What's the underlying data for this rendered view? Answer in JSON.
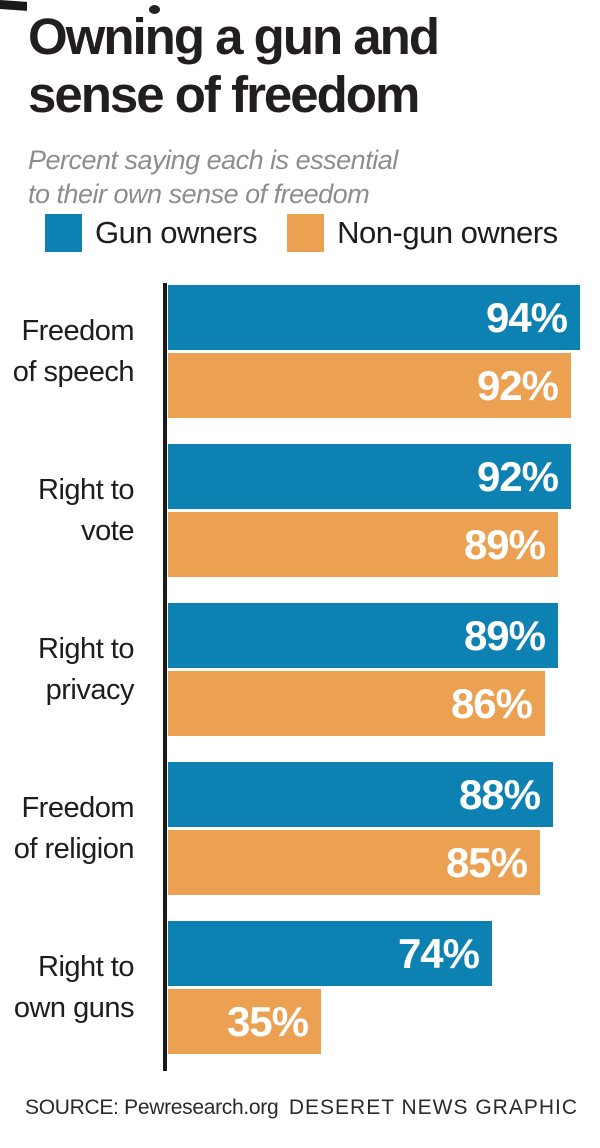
{
  "title": "Owning a gun and\nsense of freedom",
  "subtitle": "Percent saying each is essential\nto their own sense of freedom",
  "legend": [
    {
      "label": "Gun owners",
      "color": "#0d82b2"
    },
    {
      "label": "Non-gun owners",
      "color": "#eba052"
    }
  ],
  "footer": {
    "source": "SOURCE: Pewresearch.org",
    "credit": "DESERET NEWS GRAPHIC"
  },
  "colors": {
    "gun_owners": "#0d82b2",
    "non_gun_owners": "#eba052",
    "axis": "#1a1a1a",
    "title_text": "#221e1f",
    "subtitle_text": "#8d8d8d",
    "value_text": "#ffffff"
  },
  "chart_data": {
    "type": "bar",
    "orientation": "horizontal",
    "title": "Owning a gun and sense of freedom",
    "subtitle": "Percent saying each is essential to their own sense of freedom",
    "categories": [
      "Freedom\nof speech",
      "Right to\nvote",
      "Right to\nprivacy",
      "Freedom\nof religion",
      "Right to\nown guns"
    ],
    "series": [
      {
        "name": "Gun owners",
        "color": "#0d82b2",
        "values": [
          94,
          92,
          89,
          88,
          74
        ]
      },
      {
        "name": "Non-gun owners",
        "color": "#eba052",
        "values": [
          92,
          89,
          86,
          85,
          35
        ]
      }
    ],
    "value_suffix": "%",
    "value_labels": "inside-end",
    "xlim": [
      0,
      100
    ],
    "grid": false,
    "legend_position": "top"
  }
}
